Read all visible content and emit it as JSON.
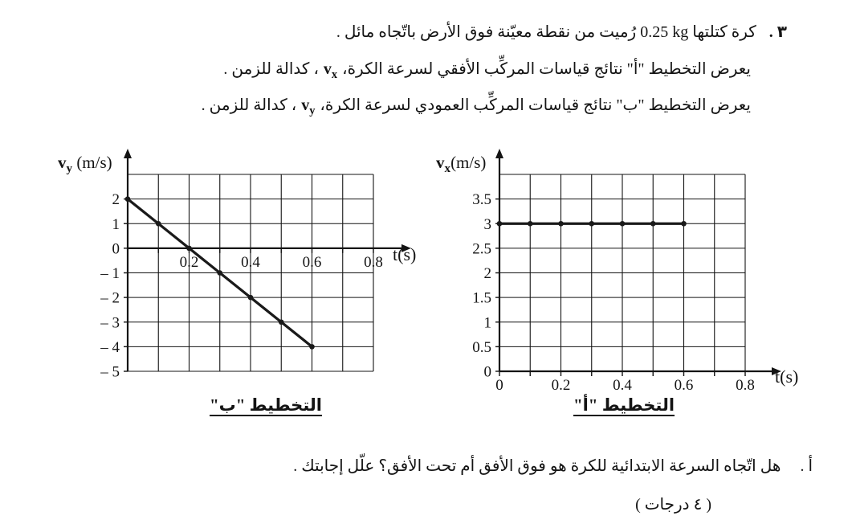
{
  "page": {
    "background": "#ffffff",
    "ink": "#141414"
  },
  "problem": {
    "number_label": "٣ .",
    "intro_pre": "كرة كتلتها",
    "intro_mass": "0.25 kg",
    "intro_post": "رُميت من نقطة معيّنة فوق الأرض باتّجاه مائل .",
    "line_a_pre": "يعرض التخطيط \"أ\" نتائج قياسات المركِّب الأفقي لسرعة الكرة،",
    "line_a_sym": "v",
    "line_a_sub": "x",
    "line_a_post": "، كدالة للزمن .",
    "line_b_pre": "يعرض التخطيط \"ب\" نتائج قياسات المركِّب العمودي لسرعة الكرة،",
    "line_b_sym": "v",
    "line_b_sub": "y",
    "line_b_post": "، كدالة للزمن ."
  },
  "question": {
    "label": "أ .",
    "text": "هل اتّجاه السرعة الابتدائية للكرة هو فوق الأفق أم تحت الأفق؟ علّل إجابتك .",
    "marks": "( ٤ درجات )"
  },
  "chart_data": [
    {
      "id": "diagram-b",
      "type": "line",
      "caption": "التخطيط \"ب\"",
      "ylabel_sym": "v",
      "ylabel_sub": "y",
      "ylabel_unit": " (m/s)",
      "xlabel": "t(s)",
      "x": [
        0,
        0.1,
        0.2,
        0.3,
        0.4,
        0.5,
        0.6
      ],
      "y": [
        2,
        1,
        0,
        -1,
        -2,
        -3,
        -4
      ],
      "xlim": [
        0,
        0.8
      ],
      "ylim": [
        -5,
        3
      ],
      "x_grid_step": 0.1,
      "y_grid_step": 1,
      "x_axis_at": 0,
      "grid": true,
      "legend": "none",
      "line_color": "#1a1a1a",
      "xticks": [
        {
          "v": 0.2,
          "label": "0.2"
        },
        {
          "v": 0.4,
          "label": "0.4"
        },
        {
          "v": 0.6,
          "label": "0.6"
        },
        {
          "v": 0.8,
          "label": "0.8"
        }
      ],
      "yticks": [
        {
          "v": 2,
          "label": "2"
        },
        {
          "v": 1,
          "label": "1"
        },
        {
          "v": 0,
          "label": "0"
        },
        {
          "v": -1,
          "label": "– 1"
        },
        {
          "v": -2,
          "label": "– 2"
        },
        {
          "v": -3,
          "label": "– 3"
        },
        {
          "v": -4,
          "label": "– 4"
        },
        {
          "v": -5,
          "label": "– 5"
        }
      ]
    },
    {
      "id": "diagram-a",
      "type": "line",
      "caption": "التخطيط \"أ\"",
      "ylabel_sym": "v",
      "ylabel_sub": "x",
      "ylabel_unit": "(m/s)",
      "xlabel": "t(s)",
      "x": [
        0,
        0.1,
        0.2,
        0.3,
        0.4,
        0.5,
        0.6
      ],
      "y": [
        3,
        3,
        3,
        3,
        3,
        3,
        3
      ],
      "xlim": [
        0,
        0.8
      ],
      "ylim": [
        0,
        4
      ],
      "x_grid_step": 0.1,
      "y_grid_step": 0.5,
      "x_axis_at": 0,
      "grid": true,
      "legend": "none",
      "line_color": "#1a1a1a",
      "xticks": [
        {
          "v": 0,
          "label": "0"
        },
        {
          "v": 0.2,
          "label": "0.2"
        },
        {
          "v": 0.4,
          "label": "0.4"
        },
        {
          "v": 0.6,
          "label": "0.6"
        },
        {
          "v": 0.8,
          "label": "0.8"
        }
      ],
      "yticks": [
        {
          "v": 3.5,
          "label": "3.5"
        },
        {
          "v": 3,
          "label": "3"
        },
        {
          "v": 2.5,
          "label": "2.5"
        },
        {
          "v": 2,
          "label": "2"
        },
        {
          "v": 1.5,
          "label": "1.5"
        },
        {
          "v": 1,
          "label": "1"
        },
        {
          "v": 0.5,
          "label": "0.5"
        },
        {
          "v": 0,
          "label": "0"
        }
      ]
    }
  ]
}
